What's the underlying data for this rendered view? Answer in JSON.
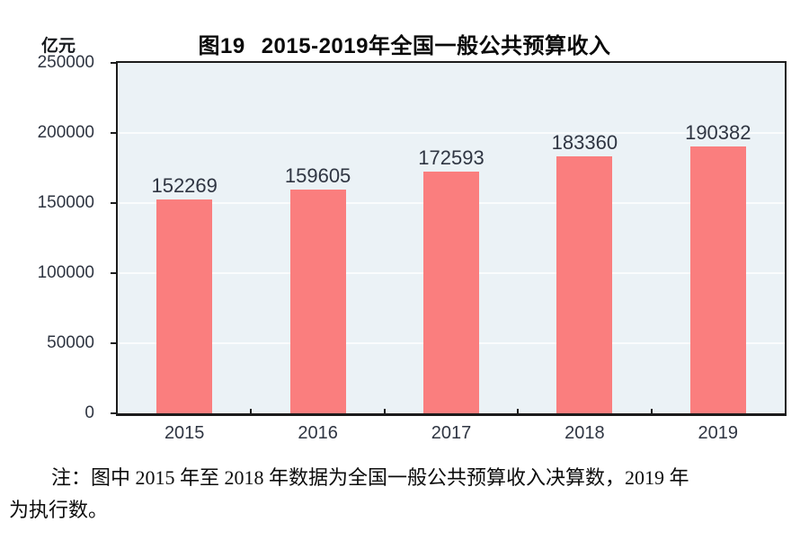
{
  "chart": {
    "title_prefix": "图19",
    "title_main": "2015-2019年全国一般公共预算收入",
    "unit_label": "亿元",
    "note_lines": [
      "注：图中 2015 年至 2018 年数据为全国一般公共预算收入决算数，2019 年",
      "为执行数。"
    ]
  },
  "chart_data": {
    "type": "bar",
    "title": "图19 2015-2019年全国一般公共预算收入",
    "categories": [
      "2015",
      "2016",
      "2017",
      "2018",
      "2019"
    ],
    "values": [
      152269,
      159605,
      172593,
      183360,
      190382
    ],
    "xlabel": "",
    "ylabel": "亿元",
    "ylim": [
      0,
      250000
    ],
    "yticks": [
      0,
      50000,
      100000,
      150000,
      200000,
      250000
    ],
    "grid": true,
    "legend": false,
    "data_labels": true,
    "colors": {
      "bar": "#fa7e7e",
      "plot_background": "#ebf2f6",
      "gridline": "#fafcfd",
      "axis_border": "#1c1c1c",
      "label_text": "#2f3542",
      "title_text": "#0a0a0a"
    }
  }
}
